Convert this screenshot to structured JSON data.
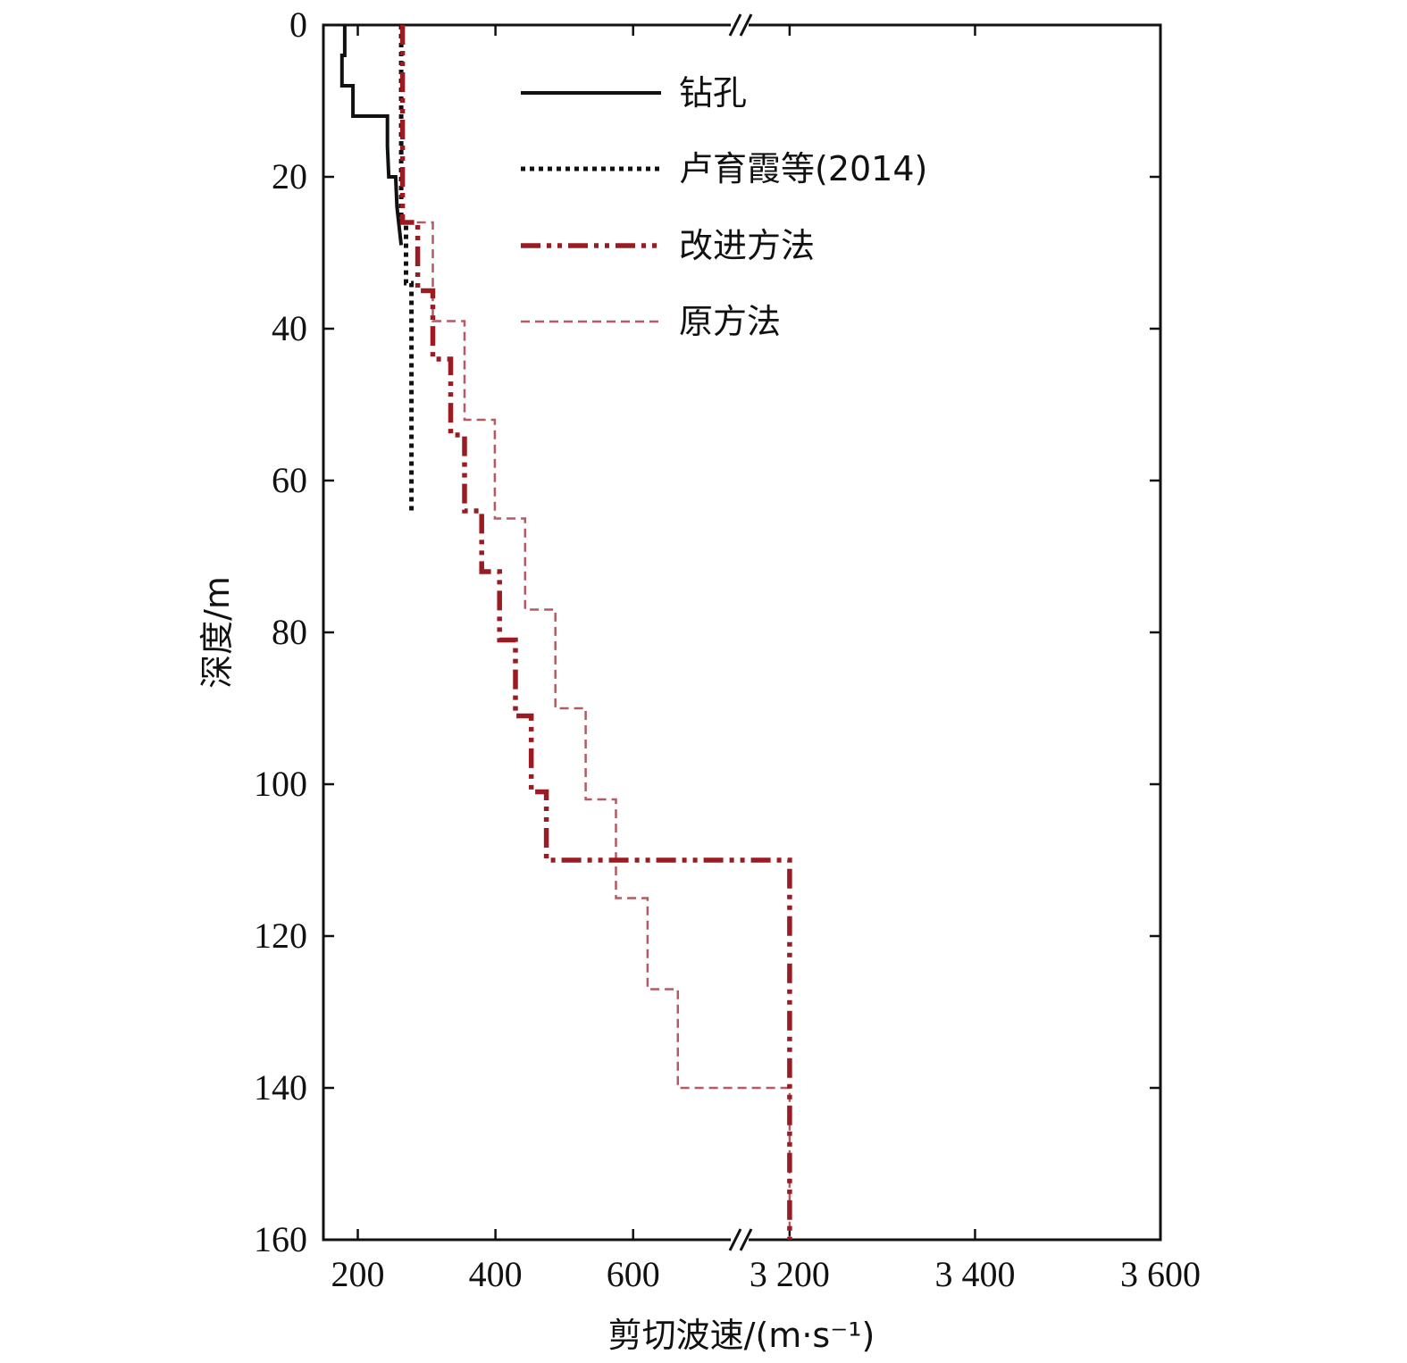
{
  "chart_data": {
    "type": "line",
    "xlabel": "剪切波速/(m·s⁻¹)",
    "ylabel": "深度/m",
    "y_inverted": true,
    "ylim": [
      0,
      160
    ],
    "x_axis_broken": true,
    "x_segments": [
      {
        "range": [
          150,
          760
        ],
        "ticks": [
          200,
          400,
          600
        ]
      },
      {
        "range": [
          3150,
          3600
        ],
        "ticks": [
          3200,
          3400,
          3600
        ]
      }
    ],
    "x_tick_labels": [
      "200",
      "400",
      "600",
      "3 200",
      "3 400",
      "3 600"
    ],
    "y_ticks": [
      0,
      20,
      40,
      60,
      80,
      100,
      120,
      140,
      160
    ],
    "y_tick_labels": [
      "0",
      "20",
      "40",
      "60",
      "80",
      "100",
      "120",
      "140",
      "160"
    ],
    "grid": false,
    "legend_position": "top-center",
    "series": [
      {
        "name": "钻孔",
        "style": "solid",
        "color": "#111111",
        "points": [
          [
            181,
            0
          ],
          [
            181,
            4
          ],
          [
            177,
            4
          ],
          [
            177,
            8
          ],
          [
            193,
            8
          ],
          [
            193,
            12
          ],
          [
            243,
            12
          ],
          [
            243,
            16
          ],
          [
            245,
            20
          ],
          [
            255,
            20
          ],
          [
            257,
            24
          ],
          [
            263,
            29
          ]
        ]
      },
      {
        "name": "卢育霞等(2014)",
        "style": "dotted",
        "color": "#111111",
        "points": [
          [
            263,
            0
          ],
          [
            263,
            26
          ],
          [
            270,
            26
          ],
          [
            270,
            34
          ],
          [
            278,
            34
          ],
          [
            278,
            64
          ]
        ]
      },
      {
        "name": "改进方法",
        "style": "dash-dot-dot",
        "color": "#9b1b22",
        "points": [
          [
            265,
            0
          ],
          [
            265,
            26
          ],
          [
            287,
            26
          ],
          [
            287,
            35
          ],
          [
            309,
            35
          ],
          [
            309,
            44
          ],
          [
            335,
            44
          ],
          [
            335,
            54
          ],
          [
            355,
            54
          ],
          [
            355,
            64
          ],
          [
            380,
            64
          ],
          [
            380,
            72
          ],
          [
            406,
            72
          ],
          [
            406,
            81
          ],
          [
            429,
            81
          ],
          [
            429,
            91
          ],
          [
            452,
            91
          ],
          [
            452,
            101
          ],
          [
            474,
            101
          ],
          [
            474,
            110
          ],
          [
            3200,
            110
          ],
          [
            3200,
            160
          ]
        ]
      },
      {
        "name": "原方法",
        "style": "dashed",
        "color": "#b35a63",
        "points": [
          [
            265,
            26
          ],
          [
            309,
            26
          ],
          [
            309,
            39
          ],
          [
            355,
            39
          ],
          [
            355,
            52
          ],
          [
            399,
            52
          ],
          [
            399,
            65
          ],
          [
            443,
            65
          ],
          [
            443,
            77
          ],
          [
            487,
            77
          ],
          [
            487,
            90
          ],
          [
            531,
            90
          ],
          [
            531,
            102
          ],
          [
            575,
            102
          ],
          [
            575,
            115
          ],
          [
            621,
            115
          ],
          [
            621,
            127
          ],
          [
            665,
            127
          ],
          [
            665,
            140
          ],
          [
            3200,
            140
          ],
          [
            3200,
            160
          ]
        ]
      }
    ]
  }
}
